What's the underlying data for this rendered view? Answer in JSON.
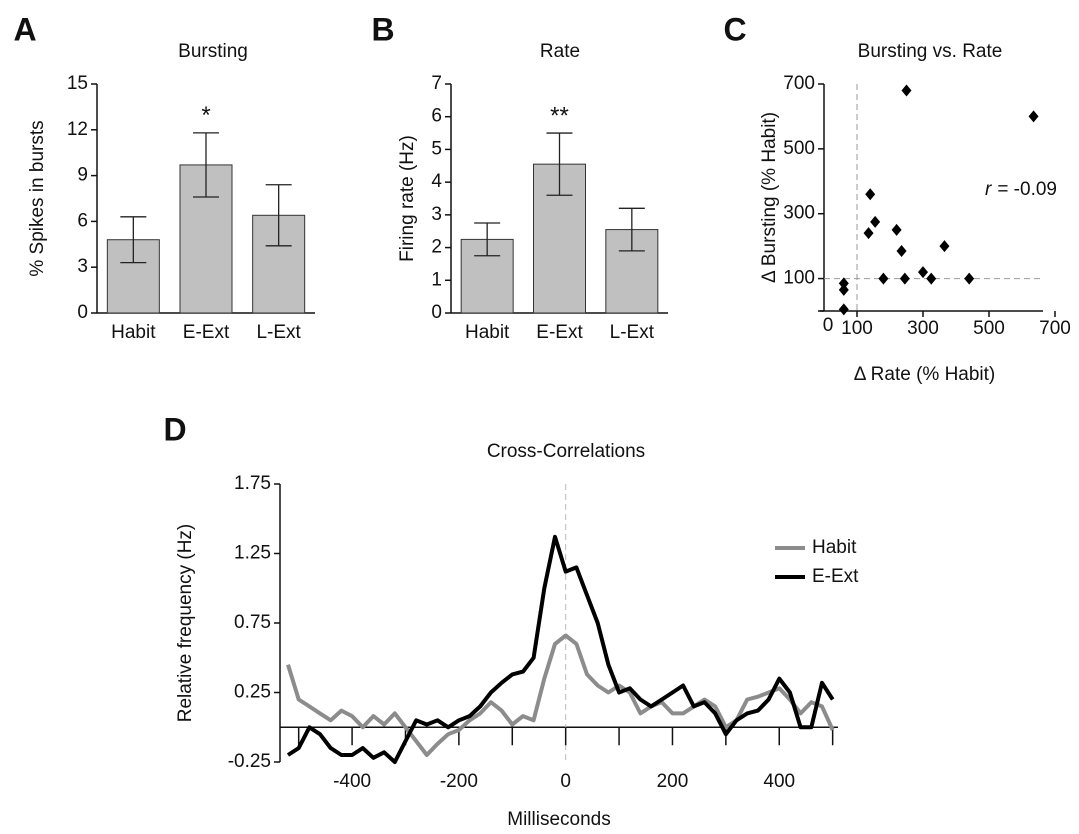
{
  "chart_data": [
    {
      "type": "bar",
      "panel": "A",
      "title": "Bursting",
      "ylabel": "% Spikes in bursts",
      "categories": [
        "Habit",
        "E-Ext",
        "L-Ext"
      ],
      "values": [
        4.8,
        9.7,
        6.4
      ],
      "errors": [
        1.5,
        2.1,
        2.0
      ],
      "annotations": [
        {
          "index": 1,
          "text": "*"
        }
      ],
      "color": "#c0c0c0",
      "ylim": [
        0,
        15
      ],
      "yticks": [
        0,
        3,
        6,
        9,
        12,
        15
      ]
    },
    {
      "type": "bar",
      "panel": "B",
      "title": "Rate",
      "ylabel": "Firing rate (Hz)",
      "categories": [
        "Habit",
        "E-Ext",
        "L-Ext"
      ],
      "values": [
        2.25,
        4.55,
        2.55
      ],
      "errors": [
        0.5,
        0.95,
        0.65
      ],
      "annotations": [
        {
          "index": 1,
          "text": "**"
        }
      ],
      "color": "#c0c0c0",
      "ylim": [
        0,
        7
      ],
      "yticks": [
        0,
        1,
        2,
        3,
        4,
        5,
        6,
        7
      ]
    },
    {
      "type": "scatter",
      "panel": "C",
      "title": "Bursting vs. Rate",
      "xlabel": "Δ Rate (% Habit)",
      "ylabel": "Δ Bursting (% Habit)",
      "x": [
        60,
        60,
        60,
        140,
        155,
        135,
        220,
        235,
        180,
        245,
        300,
        325,
        365,
        440,
        250,
        635
      ],
      "values": [
        85,
        65,
        5,
        360,
        275,
        240,
        250,
        185,
        100,
        100,
        120,
        100,
        200,
        100,
        680,
        600
      ],
      "color": "#000000",
      "annotation": {
        "symbol": "r",
        "text": "= -0.09"
      },
      "refx": 100,
      "refy": 100,
      "xlim": [
        0,
        700
      ],
      "xticks": [
        100,
        300,
        500,
        700
      ],
      "ylim": [
        0,
        700
      ],
      "yticks": [
        0,
        100,
        300,
        500,
        700
      ]
    },
    {
      "type": "line",
      "panel": "D",
      "title": "Cross-Correlations",
      "xlabel": "Milliseconds",
      "ylabel": "Relative frequency (Hz)",
      "x": [
        -520,
        -500,
        -480,
        -460,
        -440,
        -420,
        -400,
        -380,
        -360,
        -340,
        -320,
        -300,
        -280,
        -260,
        -240,
        -220,
        -200,
        -180,
        -160,
        -140,
        -120,
        -100,
        -80,
        -60,
        -40,
        -20,
        0,
        20,
        40,
        60,
        80,
        100,
        120,
        140,
        160,
        180,
        200,
        220,
        240,
        260,
        280,
        300,
        320,
        340,
        360,
        380,
        400,
        420,
        440,
        460,
        480,
        500
      ],
      "series": [
        {
          "name": "Habit",
          "color": "#8c8c8c",
          "values": [
            0.45,
            0.2,
            0.15,
            0.1,
            0.05,
            0.12,
            0.08,
            0.0,
            0.08,
            0.02,
            0.1,
            0.0,
            -0.1,
            -0.2,
            -0.12,
            -0.05,
            -0.02,
            0.05,
            0.1,
            0.18,
            0.12,
            0.02,
            0.08,
            0.05,
            0.35,
            0.6,
            0.66,
            0.6,
            0.38,
            0.3,
            0.25,
            0.3,
            0.25,
            0.1,
            0.15,
            0.18,
            0.1,
            0.1,
            0.15,
            0.2,
            0.15,
            0.0,
            0.05,
            0.2,
            0.22,
            0.25,
            0.28,
            0.2,
            0.1,
            0.18,
            0.15,
            -0.02
          ]
        },
        {
          "name": "E-Ext",
          "color": "#000000",
          "values": [
            -0.2,
            -0.15,
            0.0,
            -0.05,
            -0.15,
            -0.2,
            -0.2,
            -0.15,
            -0.22,
            -0.18,
            -0.25,
            -0.1,
            0.05,
            0.02,
            0.05,
            0.0,
            0.05,
            0.08,
            0.15,
            0.25,
            0.32,
            0.38,
            0.4,
            0.5,
            1.0,
            1.37,
            1.12,
            1.15,
            0.95,
            0.75,
            0.45,
            0.25,
            0.28,
            0.2,
            0.15,
            0.2,
            0.25,
            0.3,
            0.15,
            0.18,
            0.1,
            -0.05,
            0.05,
            0.1,
            0.12,
            0.2,
            0.35,
            0.25,
            0.0,
            0.0,
            0.32,
            0.2
          ]
        }
      ],
      "legend": "right",
      "refx": 0,
      "xminor": [
        -500,
        -300,
        -100,
        100,
        300,
        500
      ],
      "xlim": [
        -535,
        510
      ],
      "xticks": [
        -400,
        -200,
        0,
        200,
        400
      ],
      "ylim": [
        -0.25,
        1.75
      ],
      "yticks": [
        -0.25,
        0.25,
        0.75,
        1.25,
        1.75
      ]
    }
  ]
}
